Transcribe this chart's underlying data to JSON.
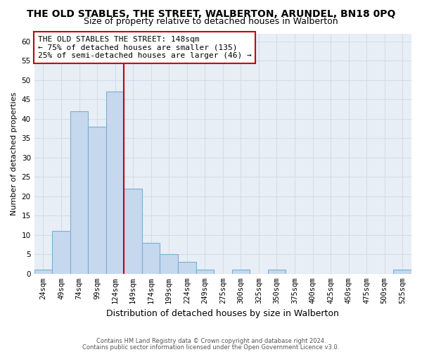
{
  "title": "THE OLD STABLES, THE STREET, WALBERTON, ARUNDEL, BN18 0PQ",
  "subtitle": "Size of property relative to detached houses in Walberton",
  "xlabel": "Distribution of detached houses by size in Walberton",
  "ylabel": "Number of detached properties",
  "footnote1": "Contains HM Land Registry data © Crown copyright and database right 2024.",
  "footnote2": "Contains public sector information licensed under the Open Government Licence v3.0.",
  "categories": [
    "24sqm",
    "49sqm",
    "74sqm",
    "99sqm",
    "124sqm",
    "149sqm",
    "174sqm",
    "199sqm",
    "224sqm",
    "249sqm",
    "275sqm",
    "300sqm",
    "325sqm",
    "350sqm",
    "375sqm",
    "400sqm",
    "425sqm",
    "450sqm",
    "475sqm",
    "500sqm",
    "525sqm"
  ],
  "values": [
    1,
    11,
    42,
    38,
    47,
    22,
    8,
    5,
    3,
    1,
    0,
    1,
    0,
    1,
    0,
    0,
    0,
    0,
    0,
    0,
    1
  ],
  "bar_color": "#c5d8ee",
  "bar_edge_color": "#7aafd4",
  "vline_color": "#cc0000",
  "vline_x_index": 4.5,
  "ylim": [
    0,
    62
  ],
  "yticks": [
    0,
    5,
    10,
    15,
    20,
    25,
    30,
    35,
    40,
    45,
    50,
    55,
    60
  ],
  "annotation_title": "THE OLD STABLES THE STREET: 148sqm",
  "annotation_line1": "← 75% of detached houses are smaller (135)",
  "annotation_line2": "25% of semi-detached houses are larger (46) →",
  "annotation_box_facecolor": "#ffffff",
  "annotation_box_edgecolor": "#cc0000",
  "grid_color": "#d4dce8",
  "bg_color": "#e8eef6",
  "title_fontsize": 10,
  "subtitle_fontsize": 9,
  "annotation_fontsize": 8,
  "tick_fontsize": 7.5,
  "ylabel_fontsize": 8,
  "xlabel_fontsize": 9
}
